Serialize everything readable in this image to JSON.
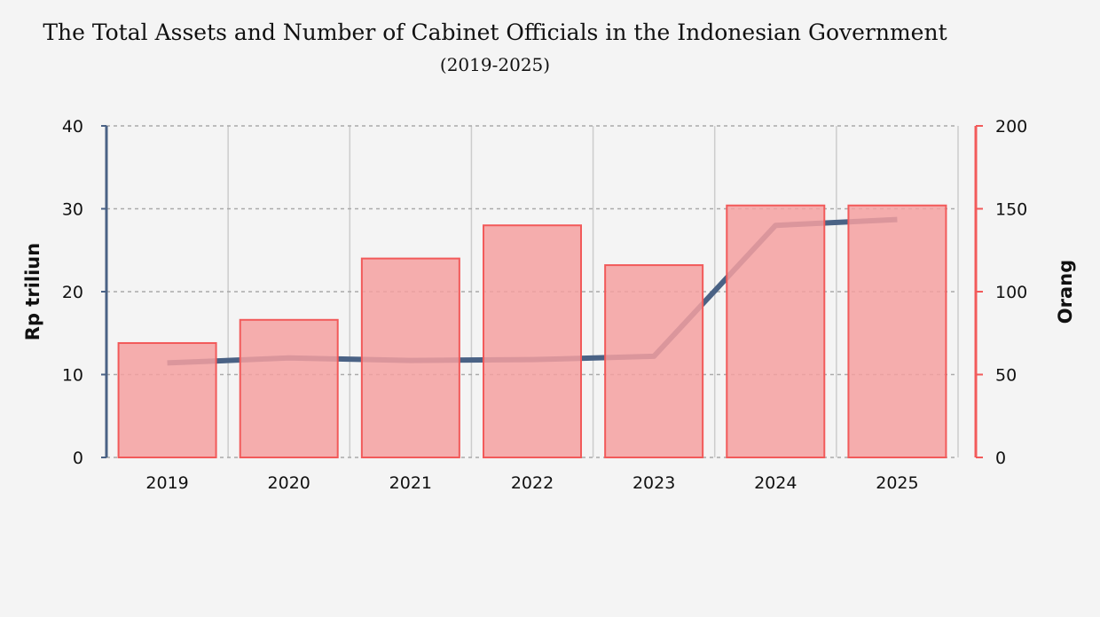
{
  "chart_data": {
    "type": "bar+line",
    "title": "The Total Assets and Number of Cabinet Officials in the Indonesian Government",
    "subtitle": "(2019-2025)",
    "categories": [
      "2019",
      "2020",
      "2021",
      "2022",
      "2023",
      "2024",
      "2025"
    ],
    "ylabel_left": "Rp triliun",
    "ylabel_right": "Orang",
    "ylim_left": [
      0,
      40
    ],
    "ylim_right": [
      0,
      200
    ],
    "yticks_left": [
      "0",
      "10",
      "20",
      "30",
      "40"
    ],
    "yticks_right": [
      "0",
      "50",
      "100",
      "150",
      "200"
    ],
    "series": [
      {
        "name": "Orang",
        "type": "bar",
        "axis": "right",
        "values": [
          69,
          83,
          120,
          140,
          116,
          152,
          152
        ],
        "color": "#f4a0a0",
        "edge": "#f25a5a"
      },
      {
        "name": "Rp triliun",
        "type": "line",
        "axis": "left",
        "values": [
          11.4,
          12.0,
          11.7,
          11.8,
          12.2,
          28.0,
          28.7
        ],
        "color": "#4a6285"
      }
    ],
    "grid": true
  }
}
